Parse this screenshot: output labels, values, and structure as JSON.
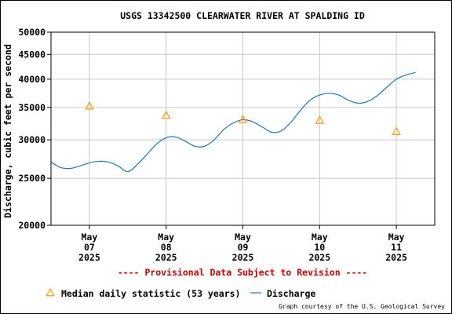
{
  "chart_data": {
    "type": "line",
    "title": "USGS 13342500 CLEARWATER RIVER AT SPALDING ID",
    "ylabel": "Discharge, cubic feet per second",
    "xlabel": "",
    "yscale": "log",
    "ylim": [
      20000,
      50000
    ],
    "y_ticks": [
      {
        "value": 20000,
        "label": "20000"
      },
      {
        "value": 25000,
        "label": "25000"
      },
      {
        "value": 30000,
        "label": "30000"
      },
      {
        "value": 35000,
        "label": "35000"
      },
      {
        "value": 40000,
        "label": "40000"
      },
      {
        "value": 45000,
        "label": "45000"
      },
      {
        "value": 50000,
        "label": "50000"
      }
    ],
    "xlim": [
      "2025-05-06 12:00",
      "2025-05-11 12:00"
    ],
    "x_ticks": [
      {
        "value": "2025-05-07",
        "month": "May",
        "day": "07",
        "year": "2025"
      },
      {
        "value": "2025-05-08",
        "month": "May",
        "day": "08",
        "year": "2025"
      },
      {
        "value": "2025-05-09",
        "month": "May",
        "day": "09",
        "year": "2025"
      },
      {
        "value": "2025-05-10",
        "month": "May",
        "day": "10",
        "year": "2025"
      },
      {
        "value": "2025-05-11",
        "month": "May",
        "day": "11",
        "year": "2025"
      }
    ],
    "grid": true,
    "legend_position": "bottom",
    "series": [
      {
        "name": "Discharge",
        "color": "#1f77b4",
        "style": "line",
        "x": [
          "2025-05-06 12:00",
          "2025-05-06 15:00",
          "2025-05-06 18:00",
          "2025-05-06 21:00",
          "2025-05-07 00:00",
          "2025-05-07 03:00",
          "2025-05-07 06:00",
          "2025-05-07 09:00",
          "2025-05-07 12:00",
          "2025-05-07 15:00",
          "2025-05-07 18:00",
          "2025-05-07 21:00",
          "2025-05-08 00:00",
          "2025-05-08 03:00",
          "2025-05-08 06:00",
          "2025-05-08 09:00",
          "2025-05-08 12:00",
          "2025-05-08 15:00",
          "2025-05-08 18:00",
          "2025-05-08 21:00",
          "2025-05-09 00:00",
          "2025-05-09 03:00",
          "2025-05-09 06:00",
          "2025-05-09 09:00",
          "2025-05-09 12:00",
          "2025-05-09 15:00",
          "2025-05-09 18:00",
          "2025-05-09 21:00",
          "2025-05-10 00:00",
          "2025-05-10 03:00",
          "2025-05-10 06:00",
          "2025-05-10 09:00",
          "2025-05-10 12:00",
          "2025-05-10 15:00",
          "2025-05-10 18:00",
          "2025-05-10 21:00",
          "2025-05-11 00:00",
          "2025-05-11 03:00",
          "2025-05-11 06:00"
        ],
        "y": [
          27000,
          26300,
          26200,
          26500,
          26900,
          27100,
          27000,
          26500,
          25800,
          26700,
          28000,
          29400,
          30300,
          30400,
          29800,
          29100,
          29100,
          30000,
          31500,
          32500,
          33000,
          32700,
          31900,
          31100,
          31300,
          32600,
          34500,
          36200,
          37100,
          37400,
          37100,
          36200,
          35700,
          36000,
          37000,
          38500,
          40000,
          40800,
          41300
        ]
      },
      {
        "name": "Median daily statistic (53 years)",
        "color": "#ff9900",
        "style": "triangle",
        "x": [
          "2025-05-07 00:00",
          "2025-05-08 00:00",
          "2025-05-09 00:00",
          "2025-05-10 00:00",
          "2025-05-11 00:00"
        ],
        "y": [
          35200,
          33700,
          33000,
          32900,
          31200
        ]
      }
    ]
  },
  "revision_note": "---- Provisional Data Subject to Revision ----",
  "credit": "Graph courtesy of the U.S. Geological Survey"
}
